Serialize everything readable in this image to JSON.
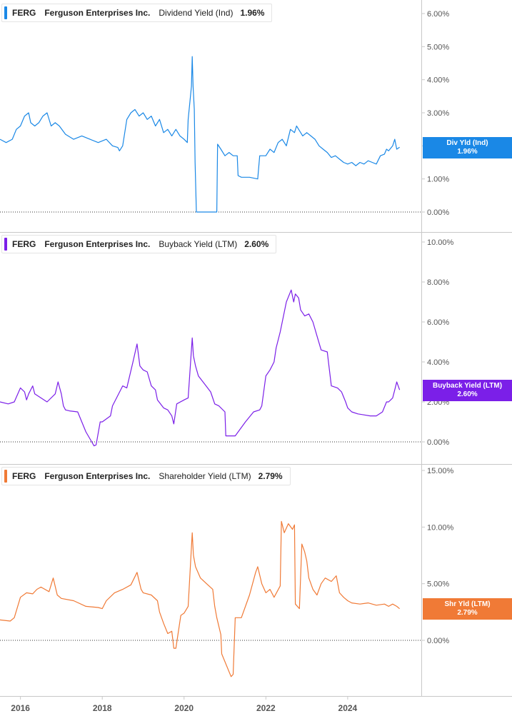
{
  "chart_data": [
    {
      "type": "line",
      "ticker": "FERG",
      "company": "Ferguson Enterprises Inc.",
      "metric": "Dividend Yield (Ind)",
      "current_value": "1.96%",
      "tag_label": "Div Yld (Ind)",
      "tag_value": "1.96%",
      "color": "#1a88e6",
      "y_ticks": [
        "0.00%",
        "1.00%",
        "2.00%",
        "3.00%",
        "4.00%",
        "5.00%",
        "6.00%"
      ],
      "ylim": [
        0,
        6.3
      ],
      "zero_line": 0,
      "x": [
        2015.5,
        2015.65,
        2015.8,
        2015.9,
        2016.0,
        2016.1,
        2016.2,
        2016.25,
        2016.35,
        2016.45,
        2016.55,
        2016.65,
        2016.75,
        2016.85,
        2016.95,
        2017.1,
        2017.3,
        2017.5,
        2017.7,
        2017.9,
        2018.1,
        2018.25,
        2018.38,
        2018.42,
        2018.5,
        2018.6,
        2018.7,
        2018.8,
        2018.9,
        2019.0,
        2019.1,
        2019.2,
        2019.3,
        2019.4,
        2019.5,
        2019.6,
        2019.7,
        2019.8,
        2019.9,
        2020.0,
        2020.08,
        2020.1,
        2020.18,
        2020.2,
        2020.22,
        2020.25,
        2020.27,
        2020.3,
        2020.32,
        2020.38,
        2020.8,
        2020.82,
        2020.9,
        2021.0,
        2021.1,
        2021.2,
        2021.3,
        2021.32,
        2021.4,
        2021.6,
        2021.8,
        2021.85,
        2022.0,
        2022.1,
        2022.2,
        2022.3,
        2022.4,
        2022.5,
        2022.6,
        2022.7,
        2022.75,
        2022.8,
        2022.9,
        2023.0,
        2023.1,
        2023.2,
        2023.3,
        2023.4,
        2023.5,
        2023.6,
        2023.7,
        2023.8,
        2023.9,
        2024.0,
        2024.1,
        2024.2,
        2024.3,
        2024.4,
        2024.5,
        2024.6,
        2024.7,
        2024.8,
        2024.9,
        2024.95,
        2025.0,
        2025.1,
        2025.15,
        2025.2,
        2025.27
      ],
      "y": [
        2.2,
        2.1,
        2.2,
        2.5,
        2.6,
        2.9,
        3.0,
        2.7,
        2.6,
        2.7,
        2.9,
        3.0,
        2.6,
        2.7,
        2.6,
        2.35,
        2.2,
        2.3,
        2.2,
        2.1,
        2.2,
        2.0,
        1.95,
        1.85,
        2.0,
        2.8,
        3.0,
        3.1,
        2.9,
        3.0,
        2.8,
        2.9,
        2.6,
        2.8,
        2.4,
        2.5,
        2.3,
        2.5,
        2.3,
        2.2,
        2.1,
        2.8,
        3.8,
        4.7,
        3.8,
        3.1,
        1.5,
        0.0,
        0.0,
        0.0,
        0.0,
        2.05,
        1.9,
        1.7,
        1.8,
        1.7,
        1.7,
        1.1,
        1.05,
        1.05,
        1.0,
        1.7,
        1.7,
        1.9,
        1.8,
        2.1,
        2.2,
        2.0,
        2.5,
        2.4,
        2.6,
        2.5,
        2.3,
        2.4,
        2.3,
        2.2,
        2.0,
        1.9,
        1.8,
        1.65,
        1.7,
        1.6,
        1.5,
        1.45,
        1.5,
        1.4,
        1.5,
        1.45,
        1.55,
        1.5,
        1.45,
        1.7,
        1.75,
        1.9,
        1.85,
        2.0,
        2.2,
        1.9,
        1.96
      ]
    },
    {
      "type": "line",
      "ticker": "FERG",
      "company": "Ferguson Enterprises Inc.",
      "metric": "Buyback Yield (LTM)",
      "current_value": "2.60%",
      "tag_label": "Buyback Yield (LTM)",
      "tag_value": "2.60%",
      "color": "#7b1fe8",
      "y_ticks": [
        "0.00%",
        "2.00%",
        "4.00%",
        "6.00%",
        "8.00%",
        "10.00%"
      ],
      "ylim": [
        0,
        10
      ],
      "zero_line": 0,
      "x": [
        2015.5,
        2015.7,
        2015.85,
        2016.0,
        2016.1,
        2016.15,
        2016.2,
        2016.3,
        2016.35,
        2016.5,
        2016.65,
        2016.85,
        2016.92,
        2017.0,
        2017.05,
        2017.1,
        2017.2,
        2017.4,
        2017.6,
        2017.8,
        2017.85,
        2017.95,
        2018.0,
        2018.2,
        2018.25,
        2018.5,
        2018.6,
        2018.75,
        2018.85,
        2018.92,
        2019.0,
        2019.1,
        2019.2,
        2019.3,
        2019.35,
        2019.5,
        2019.6,
        2019.7,
        2019.75,
        2019.82,
        2020.0,
        2020.1,
        2020.2,
        2020.23,
        2020.28,
        2020.35,
        2020.5,
        2020.65,
        2020.75,
        2020.85,
        2021.0,
        2021.02,
        2021.25,
        2021.5,
        2021.7,
        2021.85,
        2021.9,
        2022.0,
        2022.1,
        2022.2,
        2022.25,
        2022.35,
        2022.5,
        2022.62,
        2022.68,
        2022.72,
        2022.8,
        2022.85,
        2022.95,
        2023.05,
        2023.15,
        2023.25,
        2023.35,
        2023.5,
        2023.6,
        2023.75,
        2023.85,
        2023.95,
        2024.0,
        2024.1,
        2024.25,
        2024.4,
        2024.55,
        2024.7,
        2024.85,
        2024.95,
        2025.0,
        2025.1,
        2025.15,
        2025.2,
        2025.27
      ],
      "y": [
        2.0,
        1.9,
        2.0,
        2.7,
        2.5,
        2.1,
        2.4,
        2.8,
        2.4,
        2.2,
        2.0,
        2.4,
        3.0,
        2.4,
        1.8,
        1.6,
        1.55,
        1.5,
        0.5,
        -0.2,
        -0.15,
        1.0,
        1.0,
        1.3,
        1.8,
        2.8,
        2.7,
        4.0,
        4.9,
        3.8,
        3.6,
        3.5,
        2.8,
        2.6,
        2.1,
        1.7,
        1.6,
        1.3,
        0.9,
        1.9,
        2.1,
        2.2,
        5.2,
        4.3,
        3.8,
        3.3,
        2.9,
        2.5,
        1.9,
        1.8,
        1.5,
        0.3,
        0.3,
        1.0,
        1.5,
        1.6,
        1.8,
        3.3,
        3.6,
        4.0,
        4.7,
        5.5,
        7.0,
        7.6,
        7.0,
        7.4,
        7.2,
        6.6,
        6.3,
        6.4,
        6.0,
        5.3,
        4.6,
        4.5,
        2.8,
        2.7,
        2.5,
        2.0,
        1.7,
        1.5,
        1.4,
        1.35,
        1.3,
        1.3,
        1.5,
        2.0,
        2.0,
        2.2,
        2.6,
        3.0,
        2.6
      ]
    },
    {
      "type": "line",
      "ticker": "FERG",
      "company": "Ferguson Enterprises Inc.",
      "metric": "Shareholder Yield (LTM)",
      "current_value": "2.79%",
      "tag_label": "Shr Yld (LTM)",
      "tag_value": "2.79%",
      "color": "#f07a36",
      "y_ticks": [
        "0.00%",
        "5.00%",
        "10.00%",
        "15.00%"
      ],
      "ylim": [
        -4.0,
        15
      ],
      "zero_line": 0,
      "x": [
        2015.5,
        2015.75,
        2015.85,
        2016.0,
        2016.15,
        2016.3,
        2016.4,
        2016.5,
        2016.7,
        2016.8,
        2016.9,
        2017.0,
        2017.3,
        2017.6,
        2017.9,
        2018.0,
        2018.1,
        2018.3,
        2018.5,
        2018.7,
        2018.85,
        2018.95,
        2019.0,
        2019.2,
        2019.35,
        2019.4,
        2019.5,
        2019.6,
        2019.7,
        2019.75,
        2019.8,
        2019.92,
        2020.0,
        2020.1,
        2020.2,
        2020.23,
        2020.28,
        2020.4,
        2020.55,
        2020.7,
        2020.75,
        2020.8,
        2020.9,
        2020.92,
        2021.15,
        2021.2,
        2021.25,
        2021.4,
        2021.6,
        2021.75,
        2021.8,
        2021.9,
        2022.0,
        2022.1,
        2022.2,
        2022.35,
        2022.38,
        2022.45,
        2022.55,
        2022.65,
        2022.7,
        2022.72,
        2022.82,
        2022.88,
        2022.95,
        2023.0,
        2023.05,
        2023.15,
        2023.25,
        2023.35,
        2023.45,
        2023.6,
        2023.72,
        2023.8,
        2023.9,
        2024.0,
        2024.1,
        2024.3,
        2024.5,
        2024.7,
        2024.9,
        2025.0,
        2025.1,
        2025.2,
        2025.27
      ],
      "y": [
        1.8,
        1.7,
        2.0,
        3.8,
        4.2,
        4.1,
        4.5,
        4.7,
        4.3,
        5.5,
        4.0,
        3.7,
        3.5,
        3.0,
        2.9,
        2.8,
        3.5,
        4.2,
        4.5,
        4.9,
        6.0,
        4.5,
        4.2,
        4.0,
        3.5,
        2.5,
        1.5,
        0.6,
        0.8,
        -0.7,
        -0.7,
        2.2,
        2.4,
        3.0,
        9.5,
        7.5,
        6.5,
        5.5,
        5.0,
        4.5,
        3.0,
        2.0,
        0.5,
        -1.2,
        -3.2,
        -3.0,
        2.0,
        2.0,
        4.0,
        6.0,
        6.5,
        5.0,
        4.2,
        4.5,
        3.8,
        4.8,
        10.5,
        9.5,
        10.3,
        9.8,
        10.2,
        3.2,
        2.8,
        8.5,
        7.8,
        7.0,
        5.5,
        4.5,
        4.0,
        5.0,
        5.5,
        5.2,
        5.7,
        4.2,
        3.8,
        3.5,
        3.3,
        3.2,
        3.3,
        3.1,
        3.2,
        3.0,
        3.2,
        3.0,
        2.79
      ]
    }
  ],
  "x_axis": {
    "labels": [
      "2016",
      "2018",
      "2020",
      "2022",
      "2024"
    ],
    "positions": [
      2016,
      2018,
      2020,
      2022,
      2024
    ],
    "xlim": [
      2015.5,
      2025.8
    ]
  }
}
